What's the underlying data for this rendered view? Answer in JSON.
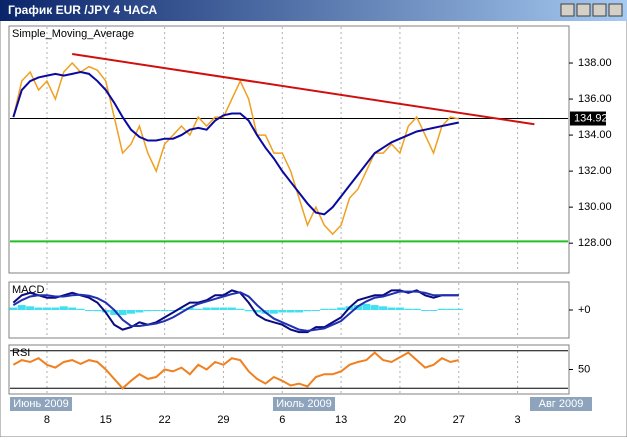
{
  "window": {
    "title": "График EUR /JPY  4 ЧАСА"
  },
  "chart_data": [
    {
      "type": "line",
      "title": "Simple_Moving_Average",
      "x": [
        4,
        5,
        6,
        7,
        8,
        9,
        10,
        11,
        12,
        13,
        14,
        15,
        16,
        17,
        18,
        19,
        20,
        21,
        22,
        23,
        24,
        25,
        26,
        27,
        28,
        29,
        30,
        31,
        32,
        33,
        34,
        35,
        36,
        37,
        38,
        39,
        40,
        41,
        42,
        43,
        44,
        45,
        46,
        47,
        48,
        49,
        50,
        51,
        52,
        53,
        54,
        55,
        56,
        57
      ],
      "series": [
        {
          "color": "#f0a020",
          "values": [
            135,
            137,
            137.5,
            136.5,
            137,
            136,
            137.5,
            138,
            137.5,
            137.8,
            137.6,
            137,
            135,
            133,
            133.5,
            134.5,
            133,
            132,
            133.5,
            134,
            134.5,
            134,
            135,
            134.5,
            135,
            135,
            136,
            137,
            136,
            134,
            134,
            133,
            133,
            132,
            130.5,
            129,
            130,
            129,
            128.5,
            129,
            130.5,
            131,
            132,
            133,
            133,
            133.5,
            133,
            134.5,
            135,
            134,
            133,
            134.5,
            135,
            134.9
          ]
        },
        {
          "color": "#0a0aa0",
          "values": [
            135,
            136.5,
            137,
            137.2,
            137.3,
            137.4,
            137.3,
            137.4,
            137.5,
            137.4,
            137,
            136.5,
            135.8,
            135,
            134.3,
            133.9,
            133.7,
            133.7,
            133.8,
            133.8,
            134,
            134.3,
            134.4,
            134.3,
            134.8,
            135.1,
            135.2,
            135.2,
            134.8,
            134,
            133.3,
            132.7,
            132,
            131.4,
            130.8,
            130.2,
            129.7,
            129.6,
            130,
            130.6,
            131.2,
            131.8,
            132.4,
            133,
            133.3,
            133.6,
            133.8,
            134,
            134.2,
            134.3,
            134.4,
            134.5,
            134.6,
            134.7
          ]
        }
      ],
      "trendline": {
        "x": [
          11,
          66
        ],
        "values": [
          138.5,
          134.6
        ],
        "color": "#d01010"
      },
      "current_price": {
        "value": 134.92,
        "color": "#000000"
      },
      "level": {
        "value": 128.1,
        "color": "#20c020"
      },
      "xlim": [
        3.6,
        70
      ],
      "ylim": [
        126.4,
        140
      ],
      "yticks": [
        {
          "value": 128,
          "label": "128.00"
        },
        {
          "value": 130,
          "label": "130.00"
        },
        {
          "value": 132,
          "label": "132.00"
        },
        {
          "value": 134,
          "label": "134.00"
        },
        {
          "value": 136,
          "label": "136.00"
        },
        {
          "value": 138,
          "label": "138.00"
        }
      ],
      "xticks": [
        8,
        15,
        22,
        29,
        {
          "value": 36,
          "label": "6"
        },
        {
          "value": 43,
          "label": "13"
        },
        {
          "value": 50,
          "label": "20"
        },
        {
          "value": 57,
          "label": "27"
        },
        {
          "value": 64,
          "label": "3"
        }
      ],
      "month_labels": [
        "Июнь 2009",
        "Июль 2009",
        "Авг 2009"
      ],
      "grid": true
    },
    {
      "type": "macd",
      "title": "MACD",
      "x": [
        4,
        5,
        6,
        7,
        8,
        9,
        10,
        11,
        12,
        13,
        14,
        15,
        16,
        17,
        18,
        19,
        20,
        21,
        22,
        23,
        24,
        25,
        26,
        27,
        28,
        29,
        30,
        31,
        32,
        33,
        34,
        35,
        36,
        37,
        38,
        39,
        40,
        41,
        42,
        43,
        44,
        45,
        46,
        47,
        48,
        49,
        50,
        51,
        52,
        53,
        54,
        55,
        56,
        57
      ],
      "histogram": {
        "color": "#40e0f0",
        "values": [
          0.1,
          0.2,
          0.15,
          0.1,
          0.1,
          0.1,
          0.15,
          0.1,
          0.05,
          0,
          -0.05,
          -0.1,
          -0.2,
          -0.2,
          -0.15,
          -0.1,
          -0.05,
          0,
          -0.05,
          0,
          0.05,
          0.1,
          0.05,
          0.1,
          0.1,
          0.1,
          0.1,
          0.05,
          -0.05,
          -0.1,
          -0.15,
          -0.15,
          -0.1,
          -0.1,
          -0.1,
          -0.05,
          0,
          0.05,
          0.05,
          0.1,
          0.15,
          0.2,
          0.25,
          0.2,
          0.15,
          0.1,
          0.1,
          0.05,
          0.05,
          0,
          0,
          0.05,
          0.05,
          0.05
        ]
      },
      "series": [
        {
          "color": "#0a0a80",
          "values": [
            0.3,
            0.6,
            0.7,
            0.6,
            0.5,
            0.5,
            0.6,
            0.7,
            0.6,
            0.5,
            0.3,
            -0.1,
            -0.6,
            -0.8,
            -0.7,
            -0.5,
            -0.6,
            -0.5,
            -0.3,
            -0.1,
            0.1,
            0.3,
            0.3,
            0.4,
            0.6,
            0.6,
            0.8,
            0.7,
            0.3,
            -0.2,
            -0.4,
            -0.5,
            -0.6,
            -0.8,
            -0.9,
            -0.9,
            -0.7,
            -0.7,
            -0.5,
            -0.3,
            0.1,
            0.4,
            0.5,
            0.6,
            0.6,
            0.8,
            0.8,
            0.7,
            0.8,
            0.6,
            0.5,
            0.6,
            0.6,
            0.6
          ]
        },
        {
          "color": "#2030b0",
          "values": [
            0.2,
            0.4,
            0.55,
            0.6,
            0.6,
            0.55,
            0.55,
            0.6,
            0.62,
            0.58,
            0.48,
            0.3,
            0,
            -0.4,
            -0.65,
            -0.65,
            -0.6,
            -0.55,
            -0.45,
            -0.3,
            -0.1,
            0.1,
            0.25,
            0.35,
            0.45,
            0.55,
            0.65,
            0.72,
            0.55,
            0.2,
            -0.1,
            -0.35,
            -0.5,
            -0.65,
            -0.8,
            -0.85,
            -0.8,
            -0.75,
            -0.6,
            -0.45,
            -0.15,
            0.15,
            0.35,
            0.5,
            0.55,
            0.65,
            0.75,
            0.75,
            0.75,
            0.7,
            0.6,
            0.6,
            0.6,
            0.6
          ]
        }
      ],
      "ylim": [
        -1.1,
        1.1
      ],
      "yticks": [
        {
          "value": 0,
          "label": "+0"
        }
      ]
    },
    {
      "type": "line",
      "title": "RSI",
      "x": [
        4,
        5,
        6,
        7,
        8,
        9,
        10,
        11,
        12,
        13,
        14,
        15,
        16,
        17,
        18,
        19,
        20,
        21,
        22,
        23,
        24,
        25,
        26,
        27,
        28,
        29,
        30,
        31,
        32,
        33,
        34,
        35,
        36,
        37,
        38,
        39,
        40,
        41,
        42,
        43,
        44,
        45,
        46,
        47,
        48,
        49,
        50,
        51,
        52,
        53,
        54,
        55,
        56,
        57
      ],
      "series": [
        {
          "color": "#f08020",
          "values": [
            55,
            60,
            58,
            62,
            55,
            52,
            58,
            60,
            56,
            60,
            58,
            50,
            40,
            30,
            38,
            45,
            40,
            42,
            50,
            48,
            52,
            45,
            55,
            50,
            58,
            55,
            62,
            60,
            48,
            40,
            35,
            42,
            38,
            33,
            35,
            32,
            42,
            45,
            45,
            48,
            55,
            58,
            60,
            68,
            60,
            58,
            63,
            68,
            60,
            52,
            55,
            62,
            58,
            60
          ]
        }
      ],
      "levels": [
        30,
        70
      ],
      "ylim": [
        25,
        75
      ],
      "yticks": [
        50
      ]
    }
  ]
}
